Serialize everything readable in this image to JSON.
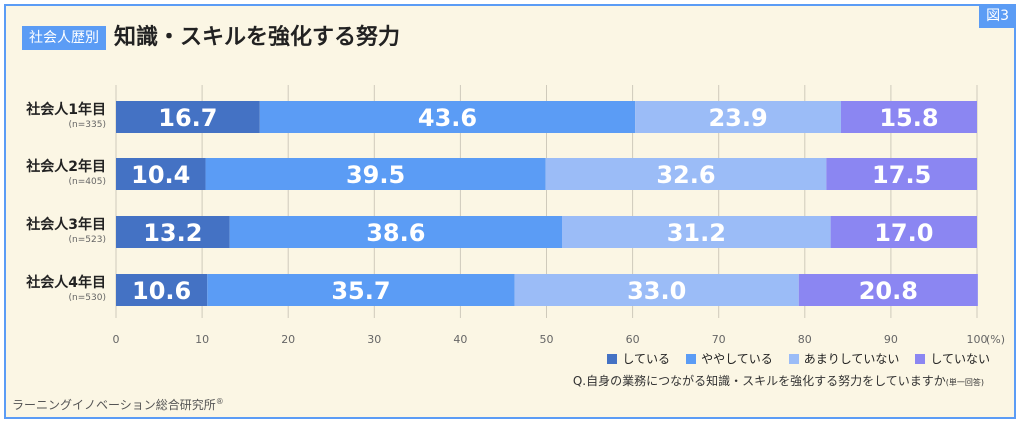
{
  "figure_tag": "図3",
  "title_badge": "社会人歴別",
  "title": "知識・スキルを強化する努力",
  "rows": [
    {
      "label": "社会人1年目",
      "n": "(n=335)"
    },
    {
      "label": "社会人2年目",
      "n": "(n=405)"
    },
    {
      "label": "社会人3年目",
      "n": "(n=523)"
    },
    {
      "label": "社会人4年目",
      "n": "(n=530)"
    }
  ],
  "legend": [
    "している",
    "ややしている",
    "あまりしていない",
    "していない"
  ],
  "question": "Q.自身の業務につながる知識・スキルを強化する努力をしていますか",
  "question_note": "(単一回答)",
  "source": "ラーニングイノベーション総合研究所",
  "source_mark": "®",
  "chart_data": {
    "type": "bar",
    "orientation": "horizontal",
    "stacked": true,
    "categories": [
      "社会人1年目",
      "社会人2年目",
      "社会人3年目",
      "社会人4年目"
    ],
    "series": [
      {
        "name": "している",
        "color": "#4472c4",
        "values": [
          16.7,
          10.4,
          13.2,
          10.6
        ]
      },
      {
        "name": "ややしている",
        "color": "#5b9cf5",
        "values": [
          43.6,
          39.5,
          38.6,
          35.7
        ]
      },
      {
        "name": "あまりしていない",
        "color": "#9bbcf7",
        "values": [
          23.9,
          32.6,
          31.2,
          33.0
        ]
      },
      {
        "name": "していない",
        "color": "#8b86f2",
        "values": [
          15.8,
          17.5,
          17.0,
          20.8
        ]
      }
    ],
    "xlim": [
      0,
      100
    ],
    "xticks": [
      "0",
      "10",
      "20",
      "30",
      "40",
      "50",
      "60",
      "70",
      "80",
      "90",
      "100"
    ],
    "xtick_unit": "(%)",
    "grid": true,
    "legend_position": "bottom-right"
  }
}
